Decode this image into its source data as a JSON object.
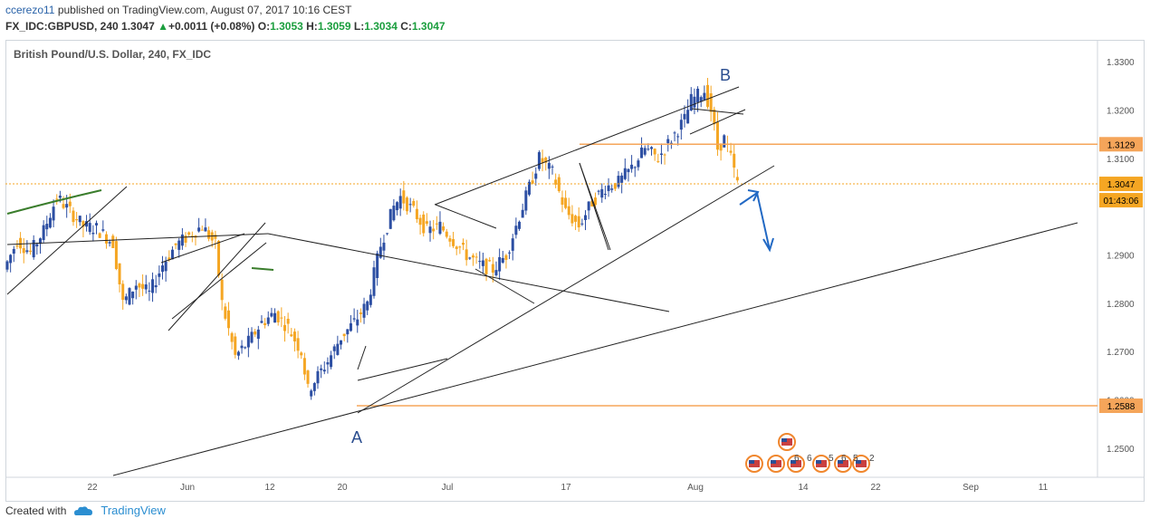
{
  "header": {
    "line1_user": "ccerezo11",
    "line1_rest": " published on TradingView.com, August 07, 2017 10:16 CEST",
    "symbol": "FX_IDC:GBPUSD, 240",
    "last": "1.3047",
    "change": "+0.0011 (+0.08%)",
    "o_label": "O:",
    "o": "1.3053",
    "h_label": "H:",
    "h": "1.3059",
    "l_label": "L:",
    "l": "1.3034",
    "c_label": "C:",
    "c": "1.3047"
  },
  "chart_title": "British Pound/U.S. Dollar, 240, FX_IDC",
  "footer": {
    "created_with": "Created with",
    "brand": "TradingView"
  },
  "colors": {
    "up": "#2d4fa3",
    "down": "#f5a623",
    "trendline": "#222222",
    "level": "#f5a55a",
    "arrow": "#2269c4",
    "green": "#3a7d2c"
  },
  "chart_data": {
    "type": "candlestick",
    "title": "British Pound/U.S. Dollar, 240, FX_IDC",
    "ylim": [
      1.244,
      1.3345
    ],
    "y_ticks": [
      "1.3300",
      "1.3200",
      "1.3100",
      "1.2900",
      "1.2800",
      "1.2700",
      "1.2600",
      "1.2500"
    ],
    "x_ticks": [
      "22",
      "Jun",
      "12",
      "20",
      "Jul",
      "17",
      "Aug",
      "14",
      "22",
      "Sep",
      "11"
    ],
    "price_levels": [
      {
        "label": "1.3129",
        "value": 1.3129
      },
      {
        "label": "1.3047",
        "value": 1.3047
      },
      {
        "label": "1.2588",
        "value": 1.2588
      }
    ],
    "countdown": "01:43:06",
    "annotations": [
      "A",
      "B"
    ],
    "event_labels": [
      "6",
      "6",
      "5",
      "6",
      "5",
      "2"
    ],
    "price_path": [
      [
        0,
        1.287
      ],
      [
        4,
        1.293
      ],
      [
        8,
        1.2905
      ],
      [
        12,
        1.295
      ],
      [
        16,
        1.302
      ],
      [
        20,
        1.299
      ],
      [
        24,
        1.296
      ],
      [
        28,
        1.2955
      ],
      [
        33,
        1.2925
      ],
      [
        36,
        1.28
      ],
      [
        40,
        1.284
      ],
      [
        44,
        1.282
      ],
      [
        48,
        1.288
      ],
      [
        52,
        1.292
      ],
      [
        56,
        1.294
      ],
      [
        60,
        1.296
      ],
      [
        64,
        1.292
      ],
      [
        66,
        1.28
      ],
      [
        70,
        1.269
      ],
      [
        74,
        1.272
      ],
      [
        78,
        1.276
      ],
      [
        82,
        1.278
      ],
      [
        86,
        1.275
      ],
      [
        90,
        1.27
      ],
      [
        92,
        1.262
      ],
      [
        94,
        1.264
      ],
      [
        98,
        1.268
      ],
      [
        102,
        1.273
      ],
      [
        106,
        1.276
      ],
      [
        110,
        1.28
      ],
      [
        114,
        1.292
      ],
      [
        118,
        1.3
      ],
      [
        120,
        1.302
      ],
      [
        124,
        1.299
      ],
      [
        128,
        1.295
      ],
      [
        132,
        1.296
      ],
      [
        136,
        1.293
      ],
      [
        140,
        1.29
      ],
      [
        144,
        1.288
      ],
      [
        148,
        1.287
      ],
      [
        152,
        1.29
      ],
      [
        156,
        1.298
      ],
      [
        160,
        1.306
      ],
      [
        162,
        1.31
      ],
      [
        166,
        1.307
      ],
      [
        170,
        1.299
      ],
      [
        174,
        1.296
      ],
      [
        178,
        1.301
      ],
      [
        182,
        1.304
      ],
      [
        186,
        1.305
      ],
      [
        190,
        1.308
      ],
      [
        194,
        1.312
      ],
      [
        198,
        1.31
      ],
      [
        202,
        1.314
      ],
      [
        206,
        1.318
      ],
      [
        208,
        1.322
      ],
      [
        212,
        1.324
      ],
      [
        214,
        1.32
      ],
      [
        216,
        1.312
      ],
      [
        218,
        1.314
      ],
      [
        220,
        1.31
      ],
      [
        222,
        1.3047
      ]
    ]
  }
}
